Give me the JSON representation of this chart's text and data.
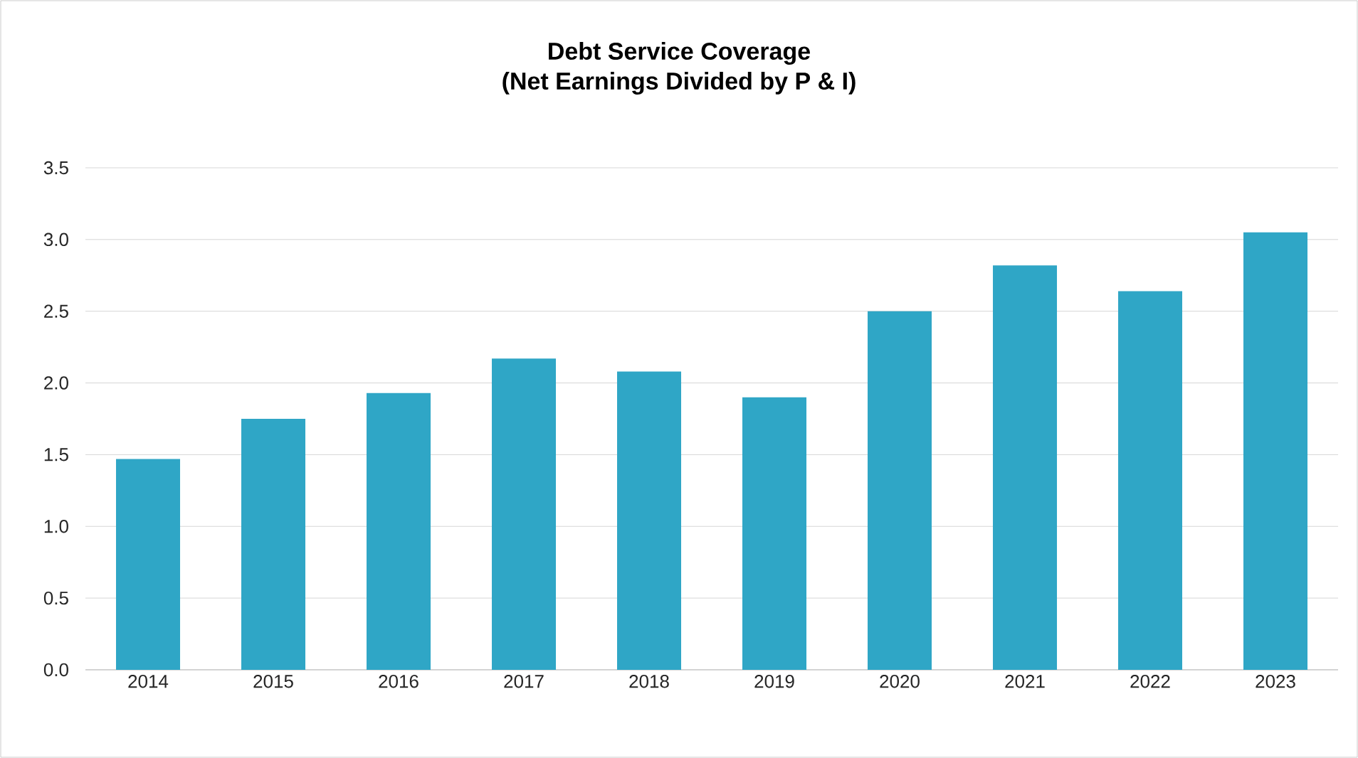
{
  "chart_data": {
    "type": "bar",
    "title": "Debt Service Coverage",
    "subtitle": "(Net Earnings Divided by P & I)",
    "categories": [
      "2014",
      "2015",
      "2016",
      "2017",
      "2018",
      "2019",
      "2020",
      "2021",
      "2022",
      "2023"
    ],
    "values": [
      1.47,
      1.75,
      1.93,
      2.17,
      2.08,
      1.9,
      2.5,
      2.82,
      2.64,
      3.05
    ],
    "color": "#2fa6c6",
    "ylim": [
      0,
      3.5
    ],
    "yticks": [
      {
        "value": 0,
        "label": "0.0"
      },
      0.5,
      {
        "value": 1,
        "label": "1.0"
      },
      1.5,
      {
        "value": 2,
        "label": "2.0"
      },
      2.5,
      {
        "value": 3,
        "label": "3.0"
      },
      3.5
    ],
    "grid": "y"
  }
}
